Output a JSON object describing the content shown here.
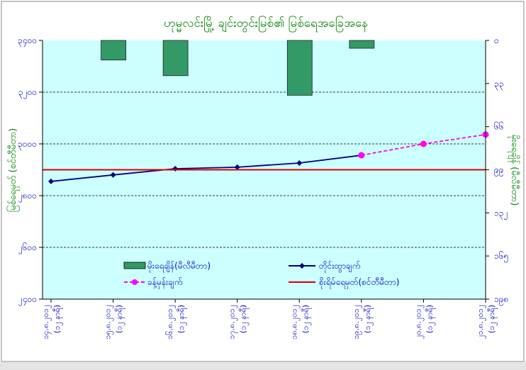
{
  "chart_data": {
    "type": "bar+line",
    "title": "ဟုမ္မလင်းမြို့ ချင်းတွင်းမြစ်၏ မြစ်ရေအခြေအနေ",
    "categories": [
      [
        "၁၄.၈.၂၀၁၂",
        "(၁၂ နာရီ)"
      ],
      [
        "၁၅.၈.၂၀၁၂",
        "(၁၂ နာရီ)"
      ],
      [
        "၁၆.၈.၂၀၁၂",
        "(၁၂ နာရီ)"
      ],
      [
        "၁၇.၈.၂၀၁၂",
        "(၁၂ နာရီ)"
      ],
      [
        "၁၈.၈.၂၀၁၂",
        "(၁၂ နာရီ)"
      ],
      [
        "၁၉.၈.၂၀၁၂",
        "(၁၂ နာရီ)"
      ],
      [
        "၂၀.၈.၂၀၁၂",
        "(၁၂ နာရီ)"
      ],
      [
        "၂၁.၈.၂၀၁၂",
        "(၁၂ နာရီ)"
      ]
    ],
    "y_left": {
      "label": "မြစ်ရေမှတ် (စင်တီမီတာ)",
      "range": [
        2400,
        3400
      ],
      "ticks": [
        2400,
        2600,
        2800,
        3000,
        3200,
        3400
      ],
      "tick_labels": [
        "၂၄၀၀",
        "၂၆၀၀",
        "၂၈၀၀",
        "၃၀၀၀",
        "၃၂၀၀",
        "၃၄၀၀"
      ],
      "grid": true
    },
    "y_right": {
      "label": "မိုးရေချိန် (မီလီမီတာ)",
      "range": [
        0,
        198
      ],
      "reversed": true,
      "ticks": [
        0,
        33,
        66,
        99,
        132,
        165,
        198
      ],
      "tick_labels": [
        "၀",
        "၃၃",
        "၆၆",
        "၉၉",
        "၁၃၂",
        "၁၆၅",
        "၁၉၈"
      ]
    },
    "series": [
      {
        "name": "မိုးရေချိန်(မီလီမီတာ)",
        "kind": "bar",
        "axis": "right",
        "color": "#339966",
        "values": [
          null,
          15,
          27,
          null,
          42,
          6,
          null,
          null
        ]
      },
      {
        "name": "တိုင်းထွာချက်",
        "kind": "line",
        "axis": "left",
        "color": "#000080",
        "values": [
          2855,
          2880,
          2904,
          2910,
          2926,
          2956,
          null,
          null
        ]
      },
      {
        "name": "ခန့်မှန်းချက်",
        "kind": "dashed-line",
        "axis": "left",
        "color": "#ff00ff",
        "values": [
          null,
          null,
          null,
          null,
          null,
          2956,
          3000,
          3036
        ]
      },
      {
        "name": "စိုးရိမ်ရေမှတ်(စင်တီမီတာ)",
        "kind": "hline",
        "axis": "left",
        "color": "#dd0000",
        "value": 2900
      }
    ],
    "legend": "inside-bottom"
  }
}
